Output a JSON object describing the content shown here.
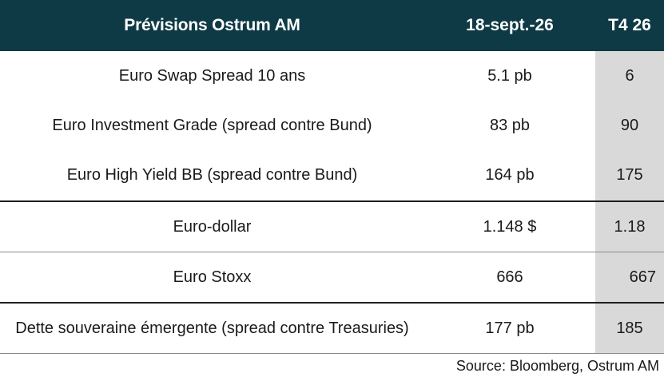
{
  "header": {
    "col1": "Prévisions Ostrum AM",
    "col2": "18-sept.-26",
    "col3": "T4 26"
  },
  "rows": [
    {
      "label": "Euro Swap Spread 10 ans",
      "current": "5.1 pb",
      "forecast": "6"
    },
    {
      "label": "Euro Investment Grade (spread contre Bund)",
      "current": "83 pb",
      "forecast": "90"
    },
    {
      "label": "Euro High Yield BB (spread contre Bund)",
      "current": "164 pb",
      "forecast": "175"
    },
    {
      "label": "Euro-dollar",
      "current": "1.148 $",
      "forecast": "1.18"
    },
    {
      "label": "Euro Stoxx",
      "current": "666",
      "forecast": "667"
    },
    {
      "label": "Dette souveraine émergente (spread contre Treasuries)",
      "current": "177 pb",
      "forecast": "185"
    }
  ],
  "source": "Source: Bloomberg, Ostrum AM",
  "colors": {
    "header_bg": "#0e3a45",
    "forecast_col_bg": "#d9d9d9"
  }
}
